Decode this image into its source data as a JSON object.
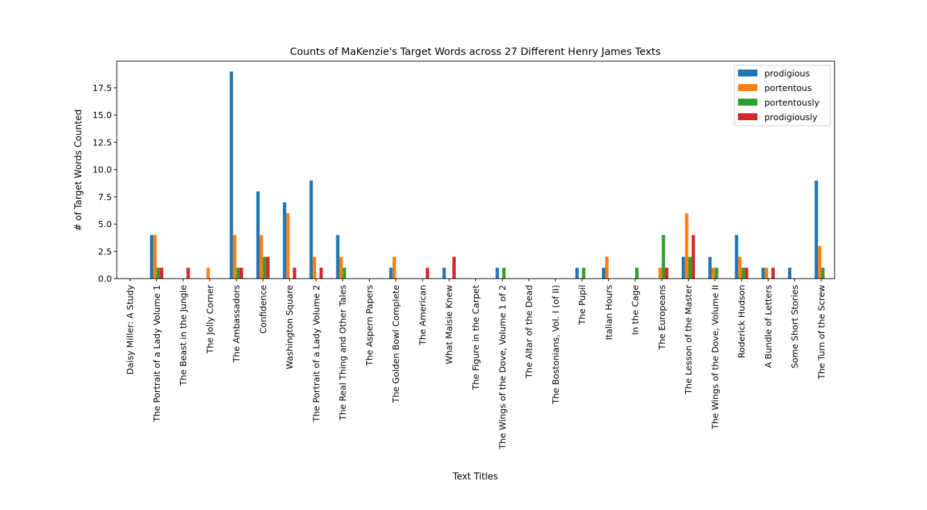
{
  "chart_data": {
    "type": "bar",
    "title": "Counts of MaKenzie's Target Words across 27 Different Henry James Texts",
    "xlabel": "Text Titles",
    "ylabel": "# of Target Words Counted",
    "ylim": [
      0,
      19.95
    ],
    "yticks": [
      "0.0",
      "2.5",
      "5.0",
      "7.5",
      "10.0",
      "12.5",
      "15.0",
      "17.5"
    ],
    "ytick_values": [
      0,
      2.5,
      5,
      7.5,
      10,
      12.5,
      15,
      17.5
    ],
    "legend": "top-right",
    "grid": false,
    "categories": [
      "Daisy Miller: A Study",
      "The Portrait of a Lady Volume 1",
      "The Beast in the Jungle",
      "The Jolly Corner",
      "The Ambassadors",
      "Confidence",
      "Washington Square",
      "The Portrait of a Lady Volume 2",
      "The Real Thing and Other Tales",
      "The Aspern Papers",
      "The Golden Bowl Complete",
      "The American",
      "What Maisie Knew",
      "The Figure in the Carpet",
      "The Wings of the Dove, Volume 1 of 2",
      "The Altar of the Dead",
      "The Bostonians, Vol. I (of II)",
      "The Pupil",
      "Italian Hours",
      "In the Cage",
      "The Europeans",
      "The Lesson of the Master",
      "The Wings of the Dove, Volume II",
      "Roderick Hudson",
      "A Bundle of Letters",
      "Some Short Stories",
      "The Turn of the Screw"
    ],
    "series": [
      {
        "name": "prodigious",
        "color": "#1f77b4",
        "values": [
          0,
          4,
          0,
          0,
          19,
          8,
          7,
          9,
          4,
          0,
          1,
          0,
          1,
          0,
          1,
          0,
          0,
          1,
          1,
          0,
          0,
          2,
          2,
          4,
          1,
          1,
          9
        ]
      },
      {
        "name": "portentous",
        "color": "#ff7f0e",
        "values": [
          0,
          4,
          0,
          1,
          4,
          4,
          6,
          2,
          2,
          0,
          2,
          0,
          0,
          0,
          0,
          0,
          0,
          0,
          2,
          0,
          1,
          6,
          1,
          2,
          1,
          0,
          3
        ]
      },
      {
        "name": "portentously",
        "color": "#2ca02c",
        "values": [
          0,
          1,
          0,
          0,
          1,
          2,
          0,
          0,
          1,
          0,
          0,
          0,
          0,
          0,
          1,
          0,
          0,
          1,
          0,
          1,
          4,
          2,
          1,
          1,
          0,
          0,
          1
        ]
      },
      {
        "name": "prodigiously",
        "color": "#d62728",
        "values": [
          0,
          1,
          1,
          0,
          1,
          2,
          1,
          1,
          0,
          0,
          0,
          1,
          2,
          0,
          0,
          0,
          0,
          0,
          0,
          0,
          1,
          4,
          0,
          1,
          1,
          0,
          0
        ]
      }
    ]
  }
}
